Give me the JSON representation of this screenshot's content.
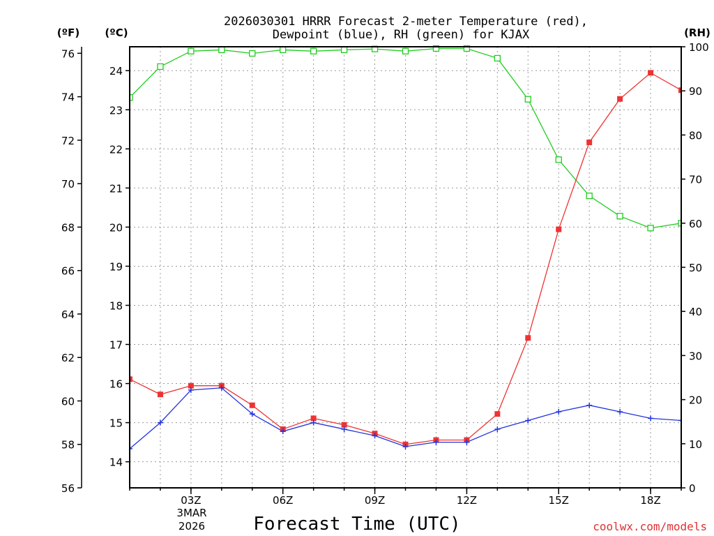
{
  "chart_data": {
    "type": "line",
    "title_line1": "2026030301 HRRR Forecast 2-meter Temperature (red),",
    "title_line2": "Dewpoint (blue), RH (green) for KJAX",
    "xlabel": "Forecast Time (UTC)",
    "date_label_line1": "3MAR",
    "date_label_line2": "2026",
    "credit": "coolwx.com/models",
    "units": {
      "fahrenheit": "(ºF)",
      "celsius": "(ºC)",
      "rh": "(RH)"
    },
    "x_hours": [
      1,
      2,
      3,
      4,
      5,
      6,
      7,
      8,
      9,
      10,
      11,
      12,
      13,
      14,
      15,
      16,
      17,
      18,
      19
    ],
    "x_ticks": [
      {
        "hour": 3,
        "label": "03Z"
      },
      {
        "hour": 6,
        "label": "06Z"
      },
      {
        "hour": 9,
        "label": "09Z"
      },
      {
        "hour": 12,
        "label": "12Z"
      },
      {
        "hour": 15,
        "label": "15Z"
      },
      {
        "hour": 18,
        "label": "18Z"
      }
    ],
    "xlim": [
      1,
      19
    ],
    "ylim_f": [
      56,
      76.3
    ],
    "f_ticks": [
      "56",
      "58",
      "60",
      "62",
      "64",
      "66",
      "68",
      "70",
      "72",
      "74",
      "76"
    ],
    "c_ticks": [
      "14",
      "15",
      "16",
      "17",
      "18",
      "19",
      "20",
      "21",
      "22",
      "23",
      "24"
    ],
    "rh_ticks": [
      "0",
      "10",
      "20",
      "30",
      "40",
      "50",
      "60",
      "70",
      "80",
      "90",
      "100"
    ],
    "ylim_rh": [
      0,
      100
    ],
    "colors": {
      "temperature": "#ee3333",
      "dewpoint": "#2233dd",
      "rh": "#22cc22"
    },
    "series": [
      {
        "name": "Temperature",
        "units": "F",
        "values": [
          61.0,
          60.3,
          60.7,
          60.7,
          59.8,
          58.7,
          59.2,
          58.9,
          58.5,
          58.0,
          58.2,
          58.2,
          59.4,
          62.9,
          67.9,
          71.9,
          73.9,
          75.1,
          74.3
        ]
      },
      {
        "name": "Dewpoint",
        "units": "F",
        "values": [
          57.8,
          59.0,
          60.5,
          60.6,
          59.4,
          58.6,
          59.0,
          58.7,
          58.4,
          57.9,
          58.1,
          58.1,
          58.7,
          59.1,
          59.5,
          59.8,
          59.5,
          59.2,
          59.1
        ]
      },
      {
        "name": "RH",
        "units": "%",
        "values": [
          88.5,
          95.5,
          99.0,
          99.3,
          98.5,
          99.3,
          99.0,
          99.3,
          99.5,
          99.0,
          99.6,
          99.6,
          97.4,
          88.1,
          74.4,
          66.2,
          61.6,
          58.9,
          60.0
        ]
      }
    ]
  }
}
